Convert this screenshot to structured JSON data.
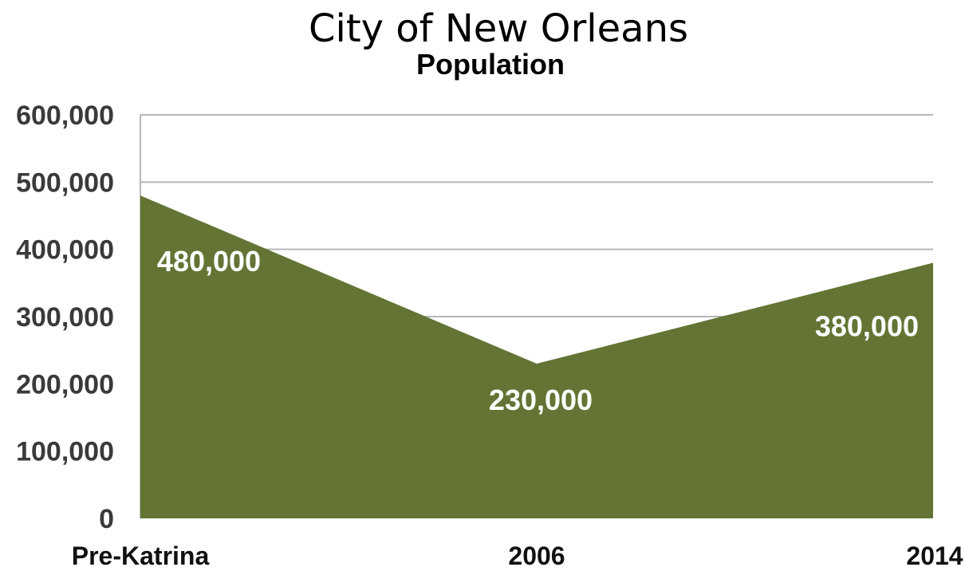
{
  "chart_data": {
    "type": "area",
    "title": "City of New Orleans",
    "subtitle": "Population",
    "categories": [
      "Pre-Katrina",
      "2006",
      "2014"
    ],
    "values": [
      480000,
      230000,
      380000
    ],
    "data_labels": [
      "480,000",
      "230,000",
      "380,000"
    ],
    "yticks": [
      {
        "value": 0,
        "label": "0"
      },
      {
        "value": 100000,
        "label": "100,000"
      },
      {
        "value": 200000,
        "label": "200,000"
      },
      {
        "value": 300000,
        "label": "300,000"
      },
      {
        "value": 400000,
        "label": "400,000"
      },
      {
        "value": 500000,
        "label": "500,000"
      },
      {
        "value": 600000,
        "label": "600,000"
      }
    ],
    "ylim": [
      0,
      600000
    ],
    "grid": true,
    "legend": "none",
    "colors": {
      "area": "#637434",
      "grid": "#b7b7b7",
      "label": "#ffffff"
    }
  }
}
